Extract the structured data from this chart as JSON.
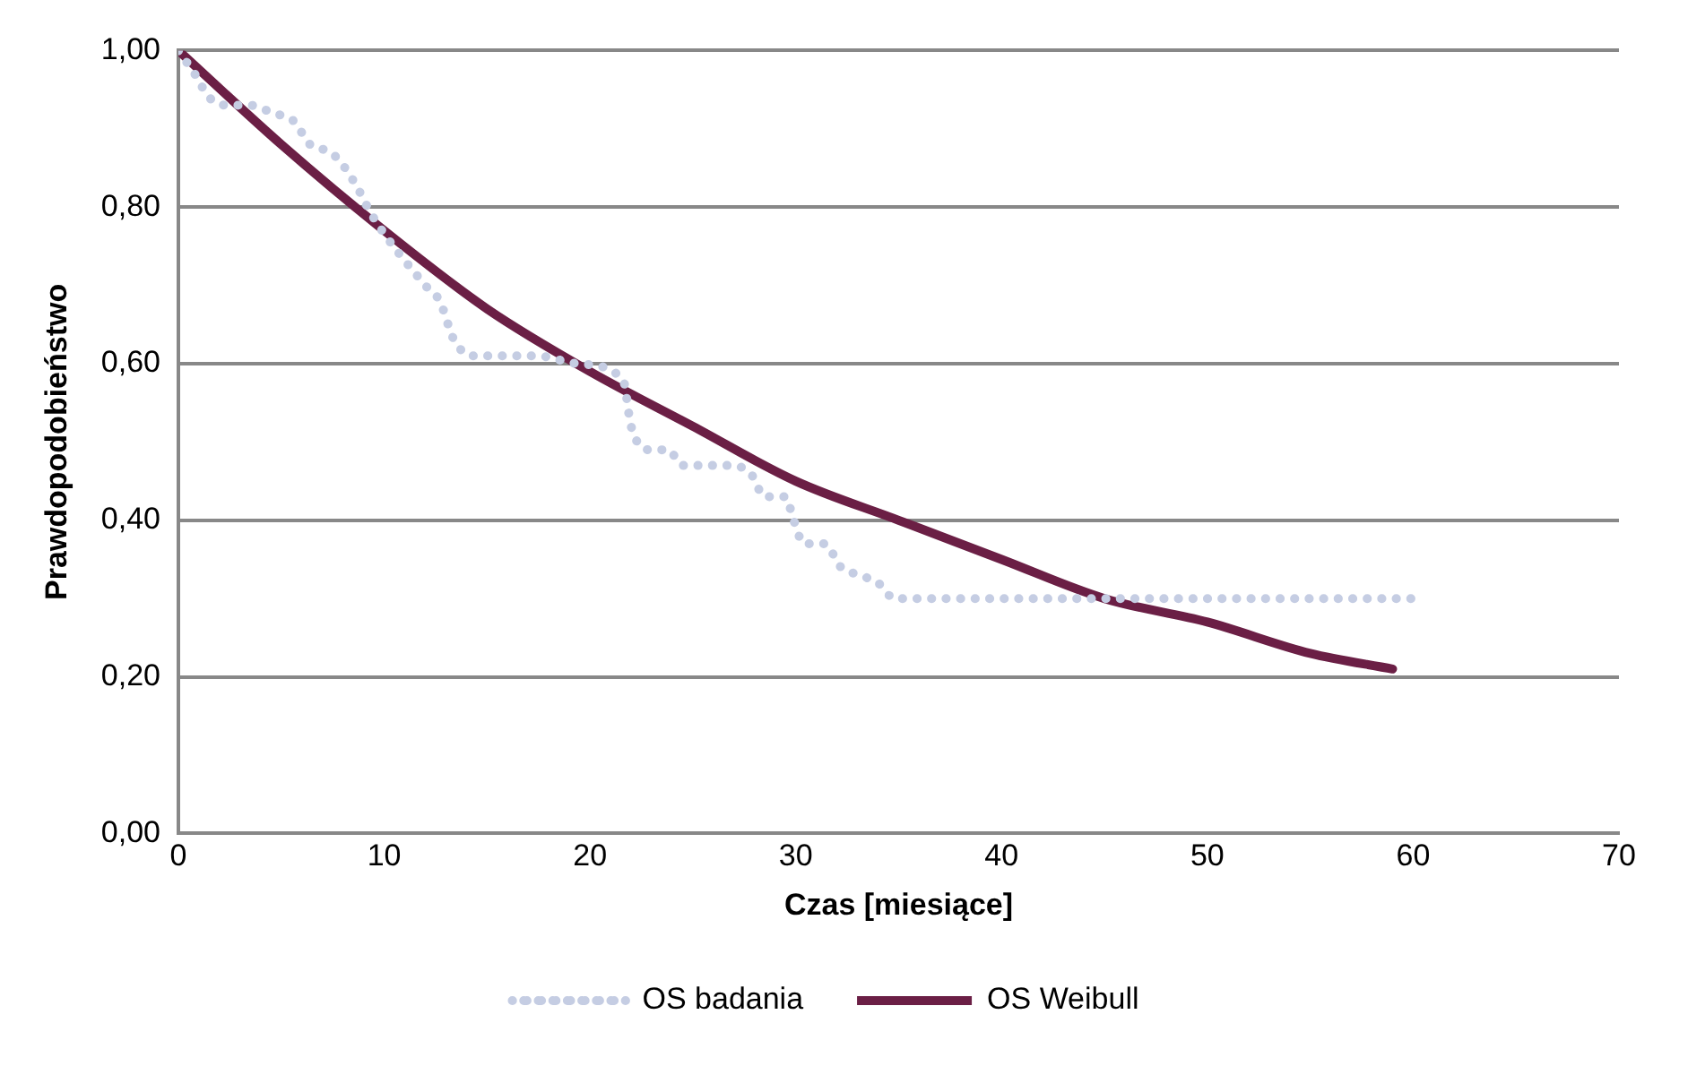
{
  "chart_data": {
    "type": "line",
    "xlabel": "Czas [miesiące]",
    "ylabel": "Prawdopodobieństwo",
    "xlim": [
      0,
      70
    ],
    "xticks": [
      0,
      10,
      20,
      30,
      40,
      50,
      60,
      70
    ],
    "ylim": [
      0,
      1
    ],
    "yticks": [
      {
        "value": 0,
        "label": "0,00"
      },
      {
        "value": 0.2,
        "label": "0,20"
      },
      {
        "value": 0.4,
        "label": "0,40"
      },
      {
        "value": 0.6,
        "label": "0,60"
      },
      {
        "value": 0.8,
        "label": "0,80"
      },
      {
        "value": 1,
        "label": "1,00"
      }
    ],
    "grid": "y",
    "legend": "bottom",
    "marker": "none",
    "series": [
      {
        "name": "OS badania",
        "color": "#c5cde3",
        "line_style": "dotted",
        "x": [
          0,
          0.8,
          1.5,
          2.4,
          3.5,
          4.6,
          5.6,
          6.4,
          7.4,
          8.1,
          8.8,
          9.4,
          12,
          12.7,
          13.4,
          14.3,
          15.4,
          17.4,
          19.4,
          21.6,
          22,
          22.9,
          23.8,
          24.5,
          26.8,
          27.8,
          28.5,
          29.5,
          29.9,
          30.4,
          31.4,
          32.2,
          33.1,
          34,
          34.8,
          40,
          45,
          50,
          55,
          60
        ],
        "values": [
          1,
          0.97,
          0.94,
          0.93,
          0.93,
          0.92,
          0.91,
          0.88,
          0.87,
          0.85,
          0.82,
          0.79,
          0.7,
          0.68,
          0.63,
          0.61,
          0.61,
          0.61,
          0.6,
          0.58,
          0.52,
          0.49,
          0.49,
          0.47,
          0.47,
          0.46,
          0.43,
          0.43,
          0.4,
          0.37,
          0.37,
          0.34,
          0.33,
          0.32,
          0.3,
          0.3,
          0.3,
          0.3,
          0.3,
          0.3
        ]
      },
      {
        "name": "OS Weibull",
        "color": "#6b1f45",
        "line_style": "solid",
        "x": [
          0,
          5,
          10,
          15,
          20,
          25,
          30,
          35,
          40,
          45,
          50,
          55,
          59
        ],
        "values": [
          1,
          0.88,
          0.77,
          0.67,
          0.59,
          0.52,
          0.45,
          0.4,
          0.35,
          0.3,
          0.27,
          0.23,
          0.21
        ]
      }
    ]
  }
}
